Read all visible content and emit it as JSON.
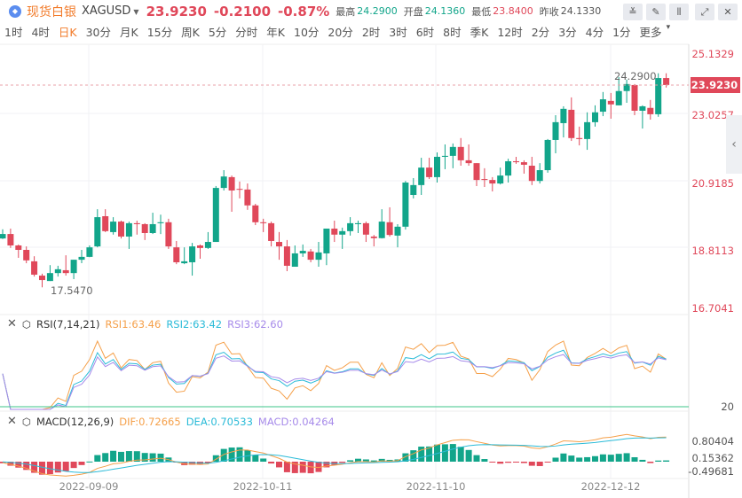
{
  "header": {
    "title": "现货白银",
    "symbol": "XAGUSD",
    "price": "23.9230",
    "change": "-0.2100",
    "change_pct": "-0.87%",
    "high_label": "最高",
    "high": "24.2900",
    "open_label": "开盘",
    "open": "24.1360",
    "low_label": "最低",
    "low": "23.8400",
    "prev_label": "昨收",
    "prev": "24.1330"
  },
  "periods": [
    "1时",
    "4时",
    "日K",
    "30分",
    "月K",
    "15分",
    "周K",
    "5分",
    "分时",
    "年K",
    "10分",
    "20分",
    "2时",
    "3时",
    "6时",
    "8时",
    "季K",
    "12时",
    "2分",
    "3分",
    "4分",
    "1分",
    "更多"
  ],
  "active_period": "日K",
  "price_axis": [
    "25.1329",
    "23.0257",
    "20.9185",
    "18.8113",
    "16.7041"
  ],
  "current_price_tag": "23.9230",
  "max_annotation": "24.2900",
  "min_annotation": "17.5470",
  "rsi": {
    "title": "RSI(7,14,21)",
    "rsi1": "RSI1:63.46",
    "rsi2": "RSI2:63.42",
    "rsi3": "RSI3:62.60",
    "axis": "20"
  },
  "macd": {
    "title": "MACD(12,26,9)",
    "dif": "DIF:0.72665",
    "dea": "DEA:0.70533",
    "macd": "MACD:0.04264",
    "axis": [
      "0.80404",
      "0.15362",
      "-0.49681"
    ]
  },
  "dates": [
    "2022-09-09",
    "2022-10-11",
    "2022-11-10",
    "2022-12-12"
  ],
  "colors": {
    "up": "#12a58a",
    "down": "#e0485a",
    "accent": "#f27b2a",
    "rsi1": "#f5a04a",
    "rsi2": "#2bbbd8",
    "rsi3": "#a78bea"
  },
  "chart_data": {
    "type": "candlestick",
    "ohlc": [
      [
        19.09,
        19.38,
        19.07,
        19.23
      ],
      [
        19.23,
        19.4,
        18.79,
        18.87
      ],
      [
        18.87,
        18.9,
        18.48,
        18.73
      ],
      [
        18.73,
        18.84,
        18.31,
        18.4
      ],
      [
        18.37,
        18.53,
        17.89,
        17.95
      ],
      [
        17.92,
        17.98,
        17.55,
        17.78
      ],
      [
        17.75,
        18.25,
        17.75,
        18.0
      ],
      [
        18.0,
        18.23,
        17.89,
        18.12
      ],
      [
        18.09,
        18.56,
        17.92,
        18.0
      ],
      [
        18.0,
        18.42,
        17.81,
        18.42
      ],
      [
        18.42,
        18.73,
        18.31,
        18.51
      ],
      [
        18.51,
        18.87,
        18.5,
        18.81
      ],
      [
        18.84,
        20.01,
        18.81,
        19.76
      ],
      [
        19.79,
        20.01,
        19.29,
        19.32
      ],
      [
        19.29,
        19.76,
        19.21,
        19.62
      ],
      [
        19.62,
        19.65,
        19.09,
        19.15
      ],
      [
        19.15,
        19.62,
        18.76,
        19.57
      ],
      [
        19.57,
        19.65,
        19.21,
        19.54
      ],
      [
        19.54,
        19.57,
        19.04,
        19.26
      ],
      [
        19.26,
        19.9,
        19.23,
        19.54
      ],
      [
        19.57,
        19.84,
        19.23,
        19.6
      ],
      [
        19.6,
        19.71,
        18.76,
        18.84
      ],
      [
        18.81,
        19.01,
        18.28,
        18.34
      ],
      [
        18.31,
        18.81,
        18.28,
        18.37
      ],
      [
        18.34,
        18.95,
        17.92,
        18.84
      ],
      [
        18.87,
        18.9,
        18.45,
        18.79
      ],
      [
        18.79,
        19.29,
        18.76,
        18.98
      ],
      [
        18.98,
        20.74,
        18.98,
        20.68
      ],
      [
        20.68,
        21.24,
        20.6,
        21.04
      ],
      [
        21.02,
        21.07,
        19.93,
        20.6
      ],
      [
        20.65,
        20.88,
        20.35,
        20.63
      ],
      [
        20.63,
        20.82,
        19.99,
        20.13
      ],
      [
        20.13,
        20.18,
        19.51,
        19.6
      ],
      [
        19.6,
        19.71,
        19.29,
        19.57
      ],
      [
        19.57,
        19.62,
        18.84,
        19.01
      ],
      [
        18.98,
        19.29,
        18.42,
        18.84
      ],
      [
        18.84,
        19.04,
        18.06,
        18.23
      ],
      [
        18.2,
        18.87,
        18.2,
        18.62
      ],
      [
        18.62,
        18.9,
        18.51,
        18.7
      ],
      [
        18.68,
        18.76,
        18.34,
        18.42
      ],
      [
        18.42,
        18.98,
        18.2,
        18.65
      ],
      [
        18.62,
        19.4,
        18.25,
        19.4
      ],
      [
        19.4,
        19.65,
        18.98,
        19.21
      ],
      [
        19.21,
        19.43,
        18.76,
        19.32
      ],
      [
        19.32,
        19.76,
        19.18,
        19.57
      ],
      [
        19.54,
        19.65,
        19.26,
        19.57
      ],
      [
        19.57,
        19.62,
        18.98,
        19.21
      ],
      [
        19.15,
        19.2,
        18.84,
        19.1
      ],
      [
        19.1,
        20.01,
        19.09,
        19.62
      ],
      [
        19.6,
        20.07,
        19.15,
        19.2
      ],
      [
        19.18,
        19.54,
        18.81,
        19.46
      ],
      [
        19.46,
        20.9,
        19.37,
        20.85
      ],
      [
        20.46,
        20.99,
        20.35,
        20.77
      ],
      [
        20.77,
        21.63,
        20.46,
        21.32
      ],
      [
        21.32,
        21.63,
        20.96,
        21.02
      ],
      [
        21.02,
        21.8,
        20.85,
        21.66
      ],
      [
        21.66,
        22.05,
        21.27,
        21.69
      ],
      [
        21.69,
        22.08,
        21.3,
        21.97
      ],
      [
        21.97,
        22.25,
        21.38,
        21.55
      ],
      [
        21.55,
        22.05,
        21.38,
        21.46
      ],
      [
        21.46,
        21.46,
        20.74,
        20.93
      ],
      [
        20.96,
        21.3,
        20.71,
        20.93
      ],
      [
        20.93,
        21.02,
        20.57,
        20.82
      ],
      [
        20.82,
        21.32,
        20.79,
        21.07
      ],
      [
        21.07,
        21.6,
        20.85,
        21.52
      ],
      [
        21.52,
        21.66,
        21.44,
        21.49
      ],
      [
        21.49,
        21.55,
        21.13,
        21.41
      ],
      [
        21.38,
        21.66,
        20.77,
        20.9
      ],
      [
        20.9,
        21.46,
        20.82,
        21.24
      ],
      [
        21.24,
        22.22,
        21.16,
        22.19
      ],
      [
        22.19,
        22.97,
        21.77,
        22.75
      ],
      [
        22.72,
        23.25,
        22.27,
        23.17
      ],
      [
        23.14,
        23.53,
        22.16,
        22.25
      ],
      [
        22.25,
        22.61,
        22.02,
        22.22
      ],
      [
        22.22,
        23.06,
        21.88,
        22.75
      ],
      [
        22.75,
        23.28,
        22.61,
        23.06
      ],
      [
        23.08,
        23.7,
        22.94,
        23.47
      ],
      [
        23.42,
        23.67,
        22.86,
        23.31
      ],
      [
        23.28,
        24.17,
        23.28,
        23.73
      ],
      [
        23.73,
        24.09,
        23.36,
        23.95
      ],
      [
        23.92,
        23.95,
        22.97,
        23.11
      ],
      [
        23.11,
        23.28,
        22.55,
        23.25
      ],
      [
        23.2,
        23.45,
        22.83,
        23.0
      ],
      [
        23.0,
        24.29,
        22.92,
        24.14
      ],
      [
        24.14,
        24.29,
        23.84,
        23.92
      ]
    ],
    "ylim": [
      16.7041,
      25.1329
    ],
    "xlabel": "",
    "ylabel": ""
  }
}
